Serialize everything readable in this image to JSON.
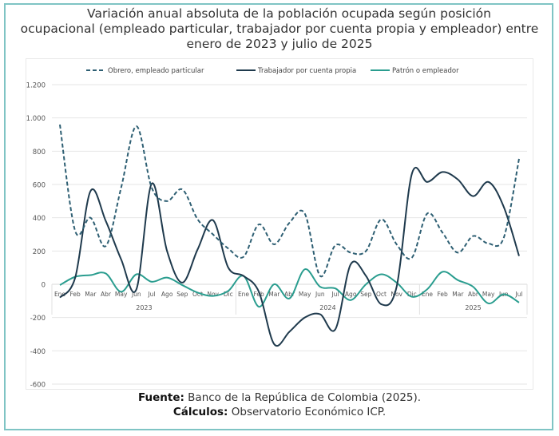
{
  "title": {
    "line1": "Variación anual absoluta de la población ocupada según posición",
    "line2": "ocupacional (empleado particular, trabajador por cuenta propia y empleador) entre",
    "line3": "enero de 2023 y julio de 2025"
  },
  "footer": {
    "source_label": "Fuente:",
    "source_text": " Banco de la República de Colombia (2025).",
    "calc_label": "Cálculos:",
    "calc_text": " Observatorio Económico ICP."
  },
  "colors": {
    "frame": "#7fc4c4",
    "obrero": "#2e5f73",
    "trabajador": "#1f3a4d",
    "patron": "#2a9d8f",
    "grid": "#e6e6e6"
  },
  "chart_data": {
    "type": "line",
    "title": "Variación anual absoluta de la población ocupada según posición ocupacional (empleado particular, trabajador por cuenta propia y empleador) entre enero de 2023 y julio de 2025",
    "xlabel": "",
    "ylabel": "",
    "ylim": [
      -600,
      1200
    ],
    "yticks": [
      1200,
      1000,
      800,
      600,
      400,
      200,
      0,
      -200,
      -400,
      -600
    ],
    "ytick_labels": [
      "1.200",
      "1.000",
      "800",
      "600",
      "400",
      "200",
      "0",
      "-200",
      "-400",
      "-600"
    ],
    "grid": true,
    "legend_position": "top",
    "categories": [
      "Ene",
      "Feb",
      "Mar",
      "Abr",
      "May",
      "Jun",
      "Jul",
      "Ago",
      "Sep",
      "Oct",
      "Nov",
      "Dic",
      "Ene",
      "Feb",
      "Mar",
      "Abr",
      "May",
      "Jun",
      "Jul",
      "Ago",
      "Sep",
      "Oct",
      "Nov",
      "Dic",
      "Ene",
      "Feb",
      "Mar",
      "Abr",
      "May",
      "Jun",
      "Jul"
    ],
    "year_groups": [
      {
        "label": "2023",
        "count": 12
      },
      {
        "label": "2024",
        "count": 12
      },
      {
        "label": "2025",
        "count": 7
      }
    ],
    "series": [
      {
        "name": "Obrero, empleado particular",
        "style": "dashed",
        "values": [
          960,
          320,
          400,
          230,
          580,
          950,
          580,
          500,
          570,
          390,
          300,
          215,
          165,
          360,
          240,
          370,
          425,
          50,
          235,
          190,
          200,
          390,
          240,
          160,
          425,
          310,
          190,
          290,
          245,
          280,
          755
        ]
      },
      {
        "name": "Trabajador por cuenta propia",
        "style": "solid",
        "values": [
          -80,
          40,
          560,
          380,
          150,
          -30,
          605,
          200,
          10,
          210,
          385,
          100,
          50,
          -45,
          -360,
          -285,
          -200,
          -180,
          -270,
          120,
          50,
          -120,
          -15,
          665,
          615,
          675,
          630,
          530,
          615,
          465,
          170
        ]
      },
      {
        "name": "Patrón o empleador",
        "style": "solid",
        "values": [
          -5,
          45,
          55,
          65,
          -45,
          60,
          15,
          40,
          -5,
          -50,
          -70,
          -40,
          50,
          -135,
          0,
          -85,
          90,
          -15,
          -25,
          -95,
          0,
          60,
          10,
          -75,
          -30,
          75,
          25,
          -15,
          -115,
          -60,
          -110
        ]
      }
    ]
  }
}
